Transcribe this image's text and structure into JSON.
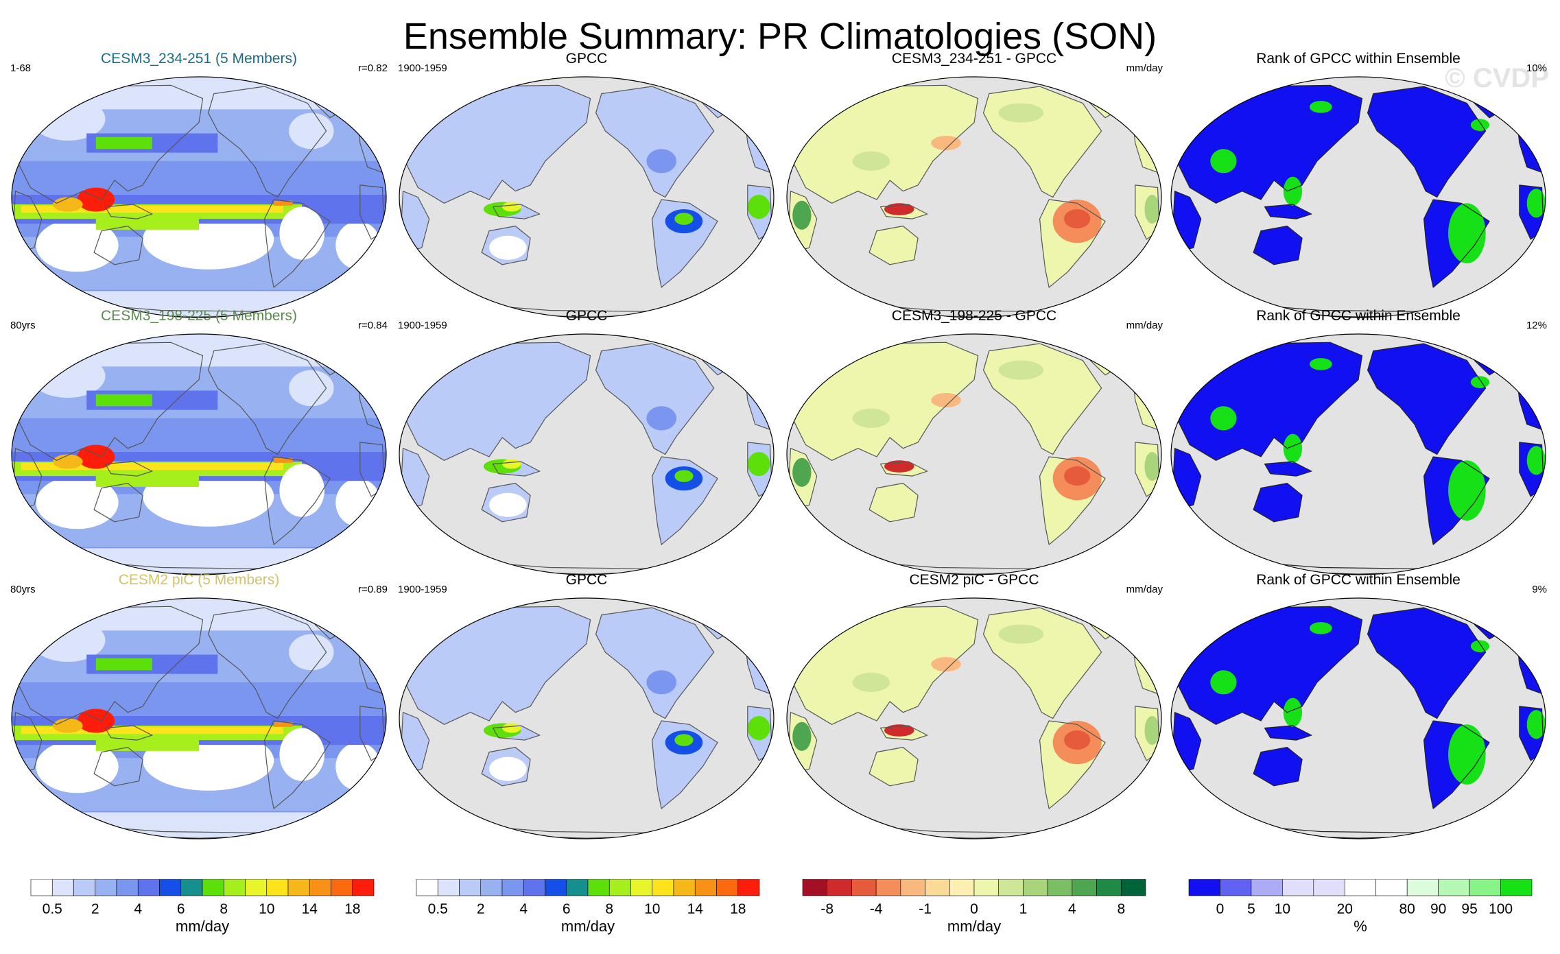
{
  "title": "Ensemble Summary: PR Climatologies (SON)",
  "watermark": "© CVDP",
  "rows": [
    {
      "model": {
        "title": "CESM3_234-251 (5 Members)",
        "title_color": "#1b6b86",
        "left": "1-68",
        "right": "r=0.82"
      },
      "obs": {
        "title": "GPCC",
        "left": "1900-1959"
      },
      "diff": {
        "title": "CESM3_234-251 - GPCC",
        "right": "mm/day"
      },
      "rank": {
        "title": "Rank of GPCC within Ensemble",
        "right": "10%"
      }
    },
    {
      "model": {
        "title": "CESM3_198-225 (5 Members)",
        "title_color": "#5b8a4e",
        "left": "80yrs",
        "right": "r=0.84"
      },
      "obs": {
        "title": "GPCC",
        "left": "1900-1959"
      },
      "diff": {
        "title": "CESM3_198-225 - GPCC",
        "right": "mm/day"
      },
      "rank": {
        "title": "Rank of GPCC within Ensemble",
        "right": "12%"
      }
    },
    {
      "model": {
        "title": "CESM2 piC (5 Members)",
        "title_color": "#d2c26a",
        "left": "80yrs",
        "right": "r=0.89"
      },
      "obs": {
        "title": "GPCC",
        "left": "1900-1959"
      },
      "diff": {
        "title": "CESM2 piC - GPCC",
        "right": "mm/day"
      },
      "rank": {
        "title": "Rank of GPCC within Ensemble",
        "right": "9%"
      }
    }
  ],
  "colorbars": [
    {
      "colors": [
        "#ffffff",
        "#dbe4fa",
        "#b9cbf6",
        "#98b1f1",
        "#7a96ee",
        "#5f74ec",
        "#1450e8",
        "#15908f",
        "#5de00a",
        "#a6ee1c",
        "#e7f52a",
        "#fde31b",
        "#f6b818",
        "#f89115",
        "#fb6a0f",
        "#fe1c0a"
      ],
      "labels": [
        "0.5",
        "2",
        "4",
        "6",
        "8",
        "10",
        "14",
        "18"
      ],
      "label_boundaries": [
        1,
        3,
        5,
        7,
        9,
        11,
        13,
        15
      ],
      "units": "mm/day"
    },
    {
      "colors": [
        "#ffffff",
        "#dbe4fa",
        "#b9cbf6",
        "#98b1f1",
        "#7a96ee",
        "#5f74ec",
        "#1450e8",
        "#15908f",
        "#5de00a",
        "#a6ee1c",
        "#e7f52a",
        "#fde31b",
        "#f6b818",
        "#f89115",
        "#fb6a0f",
        "#fe1c0a"
      ],
      "labels": [
        "0.5",
        "2",
        "4",
        "6",
        "8",
        "10",
        "14",
        "18"
      ],
      "label_boundaries": [
        1,
        3,
        5,
        7,
        9,
        11,
        13,
        15
      ],
      "units": "mm/day"
    },
    {
      "colors": [
        "#a50f24",
        "#cf2a2c",
        "#e65b3b",
        "#f48d5a",
        "#f9b97e",
        "#fbda98",
        "#fcefb1",
        "#eef5ad",
        "#cfe698",
        "#a8d47b",
        "#7bbf64",
        "#4ea651",
        "#1f8a45",
        "#00643a"
      ],
      "labels": [
        "-8",
        "-4",
        "-1",
        "0",
        "1",
        "4",
        "8"
      ],
      "label_boundaries": [
        1,
        3,
        5,
        7,
        9,
        11,
        13
      ],
      "units": "mm/day"
    },
    {
      "colors": [
        "#1010f0",
        "#6262f2",
        "#ababf6",
        "#dfdff9",
        "#dfdff9",
        "#ffffff",
        "#ffffff",
        "#dcfcdc",
        "#b4f8b4",
        "#88f488",
        "#16e016"
      ],
      "labels": [
        "0",
        "5",
        "10",
        "20",
        "80",
        "90",
        "95",
        "100"
      ],
      "label_boundaries": [
        1,
        2,
        3,
        5,
        7,
        8,
        9,
        10
      ],
      "units": "%"
    }
  ]
}
